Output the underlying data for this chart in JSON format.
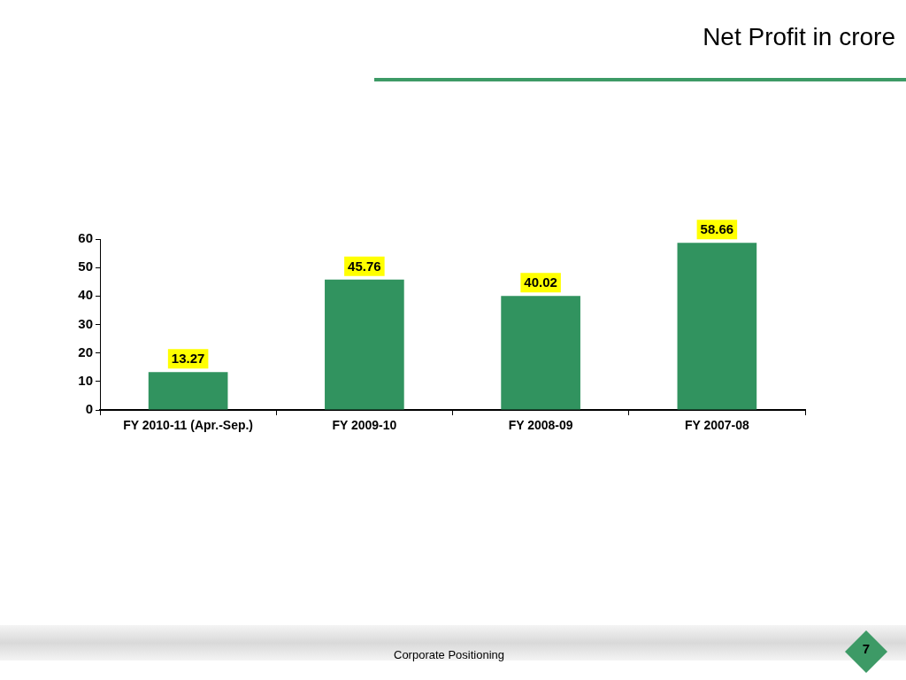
{
  "chart_data": {
    "type": "bar",
    "title": "Net Profit in crore",
    "categories": [
      "FY 2010-11 (Apr.-Sep.)",
      "FY 2009-10",
      "FY 2008-09",
      "FY 2007-08"
    ],
    "values": [
      13.27,
      45.76,
      40.02,
      58.66
    ],
    "color": "#31935f",
    "ylim": [
      0,
      60
    ],
    "yticks": [
      0,
      10,
      20,
      30,
      40,
      50,
      60
    ],
    "data_labels": true,
    "annotations": [
      "Corporate Positioning",
      "7"
    ]
  }
}
